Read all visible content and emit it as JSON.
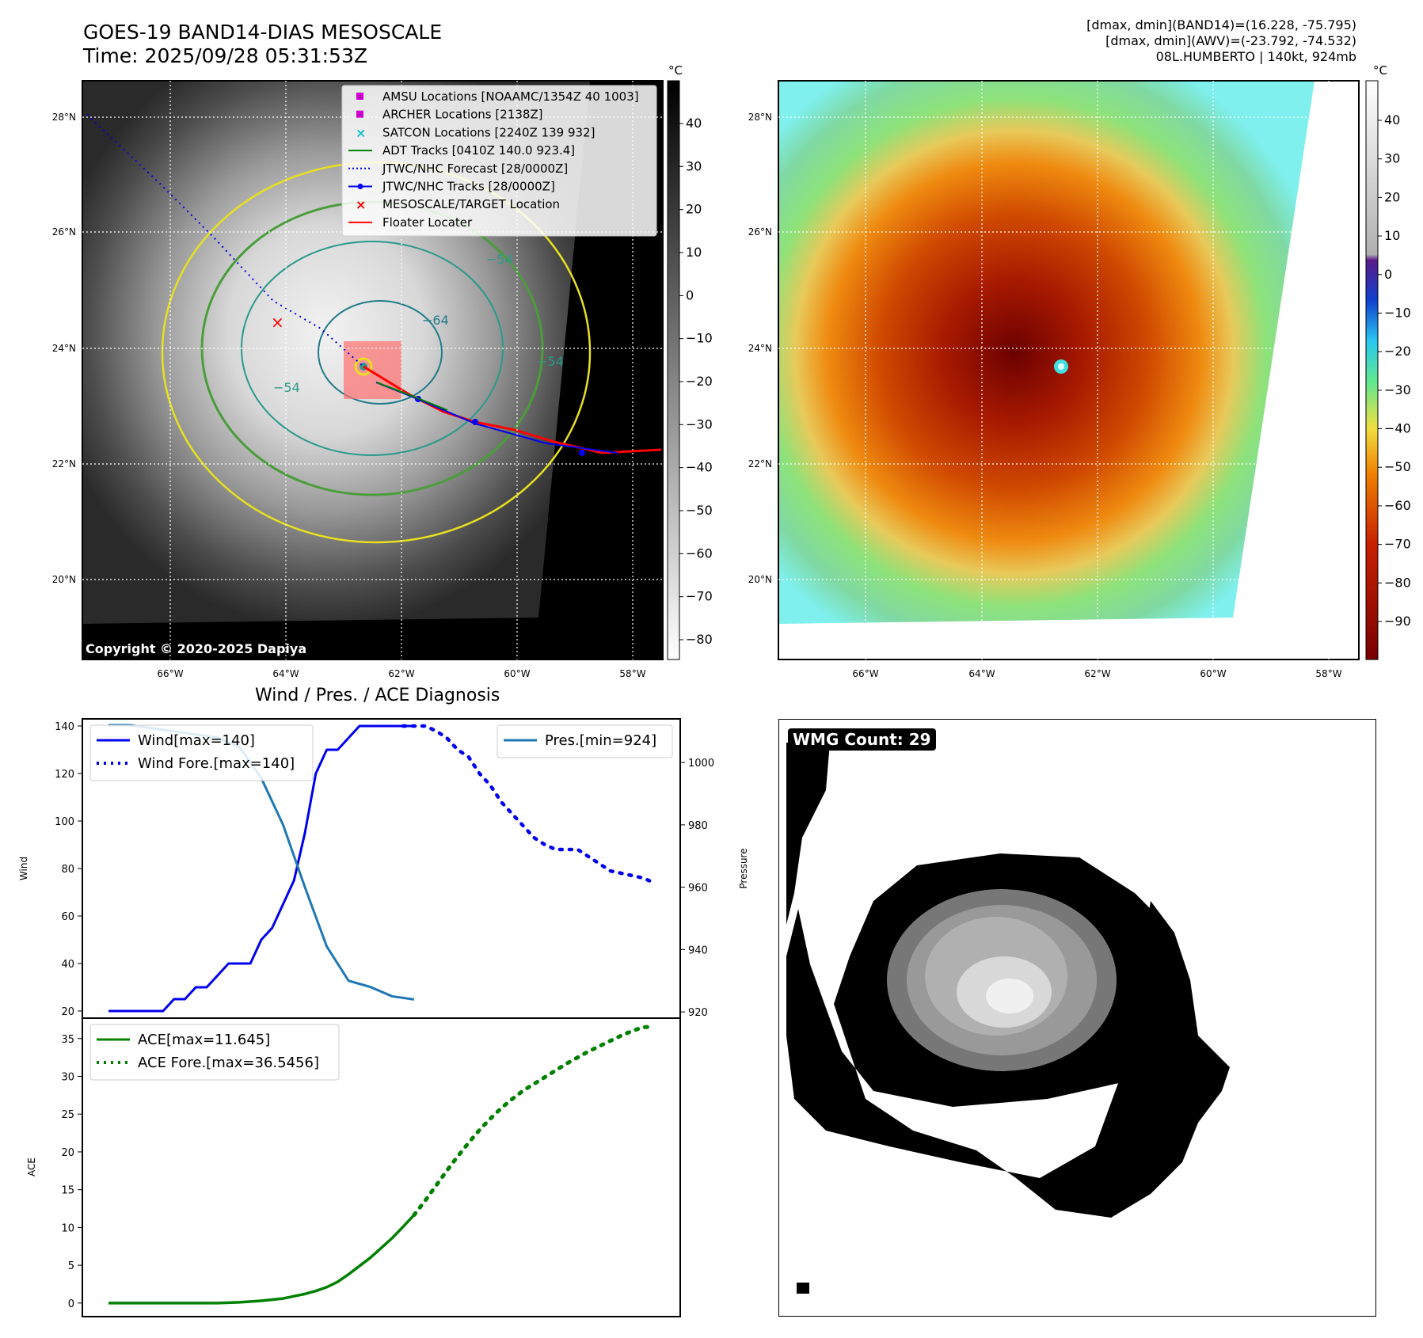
{
  "header": {
    "title_line1": "GOES-19 BAND14-DIAS MESOSCALE",
    "title_line2": "Time: 2025/09/28 05:31:53Z",
    "info_line1": "[dmax, dmin](BAND14)=(16.228, -75.795)",
    "info_line2": "[dmax, dmin](AWV)=(-23.792, -74.532)",
    "info_line3": "08L.HUMBERTO | 140kt, 924mb"
  },
  "map_axes": {
    "lat_ticks": [
      "28°N",
      "26°N",
      "24°N",
      "22°N",
      "20°N"
    ],
    "lon_ticks": [
      "66°W",
      "64°W",
      "62°W",
      "60°W",
      "58°W"
    ],
    "copyright": "Copyright © 2020-2025 Dapiya"
  },
  "colorbar_gray": {
    "unit": "°C",
    "ticks": [
      "40",
      "30",
      "20",
      "10",
      "0",
      "−10",
      "−20",
      "−30",
      "−40",
      "−50",
      "−60",
      "−70",
      "−80"
    ]
  },
  "colorbar_color": {
    "unit": "°C",
    "ticks": [
      "40",
      "30",
      "20",
      "10",
      "0",
      "−10",
      "−20",
      "−30",
      "−40",
      "−50",
      "−60",
      "−70",
      "−80",
      "−90"
    ]
  },
  "map_legend": [
    {
      "label": "AMSU Locations [NOAAMC/1354Z 40 1003]",
      "marker": "square",
      "color": "#cc00cc"
    },
    {
      "label": "ARCHER Locations [2138Z]",
      "marker": "square",
      "color": "#cc00cc"
    },
    {
      "label": "SATCON Locations [2240Z 139 932]",
      "marker": "x",
      "color": "#17becf"
    },
    {
      "label": "ADT Tracks [0410Z 140.0 923.4]",
      "marker": "line",
      "color": "#008000"
    },
    {
      "label": "JTWC/NHC Forecast [28/0000Z]",
      "marker": "dotted",
      "color": "#0000ff"
    },
    {
      "label": "JTWC/NHC Tracks [28/0000Z]",
      "marker": "line-dot",
      "color": "#0000ff"
    },
    {
      "label": "MESOSCALE/TARGET Location",
      "marker": "x",
      "color": "#ff0000"
    },
    {
      "label": "Floater Locater",
      "marker": "line",
      "color": "#ff0000"
    }
  ],
  "contour_labels": [
    "−64",
    "−54",
    "−54",
    "−54"
  ],
  "wmg": {
    "label": "WMG Count: 29"
  },
  "chart_data": [
    {
      "type": "line",
      "title": "Wind / Pres. / ACE Diagnosis",
      "ylabel": "Wind",
      "ylabel_right": "Pressure",
      "ylim": [
        17,
        143
      ],
      "ylim_right": [
        918,
        1014
      ],
      "yticks": [
        "140",
        "120",
        "100",
        "80",
        "60",
        "40",
        "20"
      ],
      "yticks_right": [
        "1000",
        "980",
        "960",
        "940",
        "920"
      ],
      "x": [
        0,
        1,
        2,
        3,
        4,
        5,
        6,
        7,
        8,
        9,
        10,
        11,
        12,
        13,
        14,
        15,
        16,
        17,
        18,
        19,
        20,
        21,
        22,
        23,
        24,
        25,
        26,
        27,
        28,
        29,
        30,
        31,
        32,
        33,
        34,
        35,
        36,
        37,
        38,
        39,
        40,
        41,
        42,
        43,
        44,
        45,
        46,
        47,
        48,
        49,
        50
      ],
      "series": [
        {
          "name": "Wind[max=140]",
          "color": "#0000ee",
          "style": "solid",
          "x": [
            0,
            2,
            4,
            5,
            6,
            7,
            8,
            9,
            10,
            11,
            12,
            13,
            14,
            15,
            16,
            17,
            18,
            19,
            20,
            21,
            22,
            23,
            24,
            25,
            26,
            27,
            28
          ],
          "values": [
            20,
            20,
            20,
            20,
            25,
            25,
            30,
            30,
            35,
            40,
            40,
            40,
            50,
            55,
            65,
            75,
            95,
            120,
            130,
            130,
            135,
            140,
            140,
            140,
            140,
            140,
            140
          ]
        },
        {
          "name": "Wind Fore.[max=140]",
          "color": "#0000ee",
          "style": "dotted",
          "x": [
            27,
            28,
            29,
            30,
            31,
            32,
            33,
            34,
            35,
            36,
            37,
            38,
            39,
            40,
            41,
            42,
            43,
            44,
            45,
            46,
            47,
            48,
            49,
            50
          ],
          "values": [
            140,
            140,
            140,
            138,
            135,
            130,
            127,
            120,
            115,
            108,
            103,
            98,
            93,
            90,
            88,
            88,
            88,
            85,
            82,
            79,
            78,
            77,
            76,
            74
          ]
        },
        {
          "name": "Pres.[min=924]",
          "color": "#1f77b4",
          "style": "solid",
          "axis": "right",
          "x": [
            0,
            2,
            4,
            6,
            8,
            10,
            12,
            14,
            16,
            18,
            20,
            22,
            24,
            26,
            28
          ],
          "values": [
            1012,
            1012,
            1011,
            1010,
            1009,
            1008,
            1005,
            995,
            980,
            960,
            941,
            930,
            928,
            925,
            924
          ]
        }
      ]
    },
    {
      "type": "line",
      "ylabel": "ACE",
      "ylim": [
        -1.8,
        37.7
      ],
      "yticks": [
        "35",
        "30",
        "25",
        "20",
        "15",
        "10",
        "5",
        "0"
      ],
      "series": [
        {
          "name": "ACE[max=11.645]",
          "color": "#008000",
          "style": "solid",
          "x": [
            0,
            2,
            4,
            6,
            8,
            10,
            12,
            14,
            16,
            18,
            19,
            20,
            21,
            22,
            23,
            24,
            25,
            26,
            27,
            28
          ],
          "values": [
            0,
            0,
            0,
            0,
            0,
            0,
            0.1,
            0.3,
            0.6,
            1.2,
            1.6,
            2.1,
            2.8,
            3.8,
            4.9,
            6.0,
            7.3,
            8.6,
            10.1,
            11.645
          ]
        },
        {
          "name": "ACE Fore.[max=36.5456]",
          "color": "#008000",
          "style": "dotted",
          "x": [
            28,
            29,
            30,
            31,
            32,
            33,
            34,
            35,
            36,
            37,
            38,
            39,
            40,
            41,
            42,
            43,
            44,
            45,
            46,
            47,
            48,
            49,
            50
          ],
          "values": [
            11.645,
            13.5,
            15.5,
            17.5,
            19.4,
            21.2,
            22.9,
            24.4,
            25.8,
            27.0,
            28.1,
            29.0,
            29.9,
            30.8,
            31.7,
            32.5,
            33.3,
            34.0,
            34.7,
            35.4,
            36.0,
            36.5,
            36.5456
          ]
        }
      ]
    }
  ]
}
